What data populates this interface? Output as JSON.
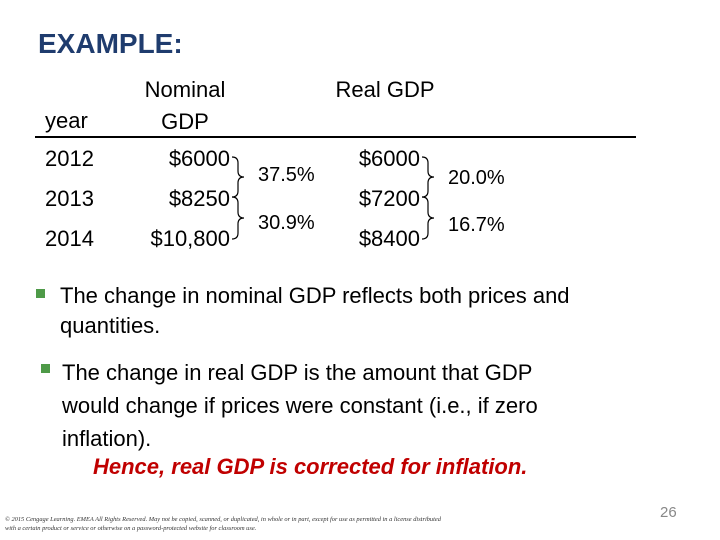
{
  "title": "EXAMPLE:",
  "table": {
    "headers": [
      "year",
      "Nominal GDP",
      "Real GDP"
    ],
    "rows": [
      [
        "2012",
        "$6000",
        "$6000"
      ],
      [
        "2013",
        "$8250",
        "$7200"
      ],
      [
        "2014",
        "$10,800",
        "$8400"
      ]
    ],
    "nominal_growth": [
      "37.5%",
      "30.9%"
    ],
    "real_growth": [
      "20.0%",
      "16.7%"
    ]
  },
  "bullets": [
    "The change in nominal GDP reflects both prices and quantities.",
    "The change in real GDP is the amount that GDP would change if prices were constant (i.e., if zero inflation)."
  ],
  "emphasis": "Hence, real GDP is corrected for inflation.",
  "footer": {
    "copyright": "© 2015 Cengage Learning. EMEA All Rights Reserved. May not be copied, scanned, or duplicated, in whole or in part, except for use as permitted in a license distributed with a certain product or service or otherwise on a password-protected website for classroom use.",
    "page": "26"
  }
}
